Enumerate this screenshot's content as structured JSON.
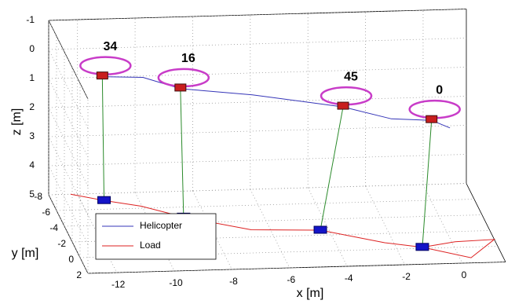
{
  "chart_data": {
    "type": "line3d",
    "xlabel": "x [m]",
    "ylabel": "y [m]",
    "zlabel": "z [m]",
    "xlim": [
      -13,
      1.5
    ],
    "ylim": [
      -8,
      2
    ],
    "zlim": [
      -1,
      5
    ],
    "zdir": "reverse",
    "xticks": [
      -12,
      -10,
      -8,
      -6,
      -4,
      -2,
      0
    ],
    "yticks": [
      -8,
      -6,
      -4,
      -2,
      0,
      2
    ],
    "zticks": [
      -1,
      0,
      1,
      2,
      3,
      4,
      5
    ],
    "grid": true,
    "legend": "lower left",
    "series": [
      {
        "name": "Helicopter",
        "color": "#3535b8",
        "x": [
          -11.26,
          -10,
          -8.87,
          -6.5,
          -3.51,
          -2,
          -0.78,
          -0.2
        ],
        "y": [
          -7.1,
          -6,
          -4.74,
          -3.8,
          -2.63,
          -1.4,
          -0.13,
          0.3
        ],
        "z": [
          0.74,
          0.5,
          0.58,
          0.6,
          0.78,
          0.9,
          0.64,
          0.8
        ]
      },
      {
        "name": "Load",
        "color": "#dd2222",
        "x": [
          -12.24,
          -11.2,
          -10.02,
          -8.76,
          -6.66,
          -4.3,
          -2.31,
          -1.1,
          0.39,
          1.5,
          0.12,
          -1.1
        ],
        "y": [
          -8,
          -7.1,
          -6.25,
          -4.74,
          -2.92,
          -2.63,
          -0.83,
          -0.13,
          1.35,
          -0.87,
          -0.72,
          -0.13
        ],
        "z": [
          5,
          5,
          5,
          5,
          5,
          5,
          5,
          5,
          5,
          5,
          5,
          5
        ]
      }
    ],
    "snapshots": [
      {
        "label": 34,
        "helicopter": {
          "x": -11.26,
          "y": -7.1,
          "z": 0.74
        },
        "load": {
          "x": -11.2,
          "y": -7.1,
          "z": 5
        }
      },
      {
        "label": 16,
        "helicopter": {
          "x": -8.87,
          "y": -4.74,
          "z": 0.58
        },
        "load": {
          "x": -8.76,
          "y": -4.74,
          "z": 5
        }
      },
      {
        "label": 45,
        "helicopter": {
          "x": -3.51,
          "y": -2.63,
          "z": 0.78
        },
        "load": {
          "x": -4.3,
          "y": -2.63,
          "z": 5
        }
      },
      {
        "label": 0,
        "helicopter": {
          "x": -0.78,
          "y": -0.13,
          "z": 0.64
        },
        "load": {
          "x": -1.1,
          "y": -0.13,
          "z": 5
        }
      }
    ]
  }
}
